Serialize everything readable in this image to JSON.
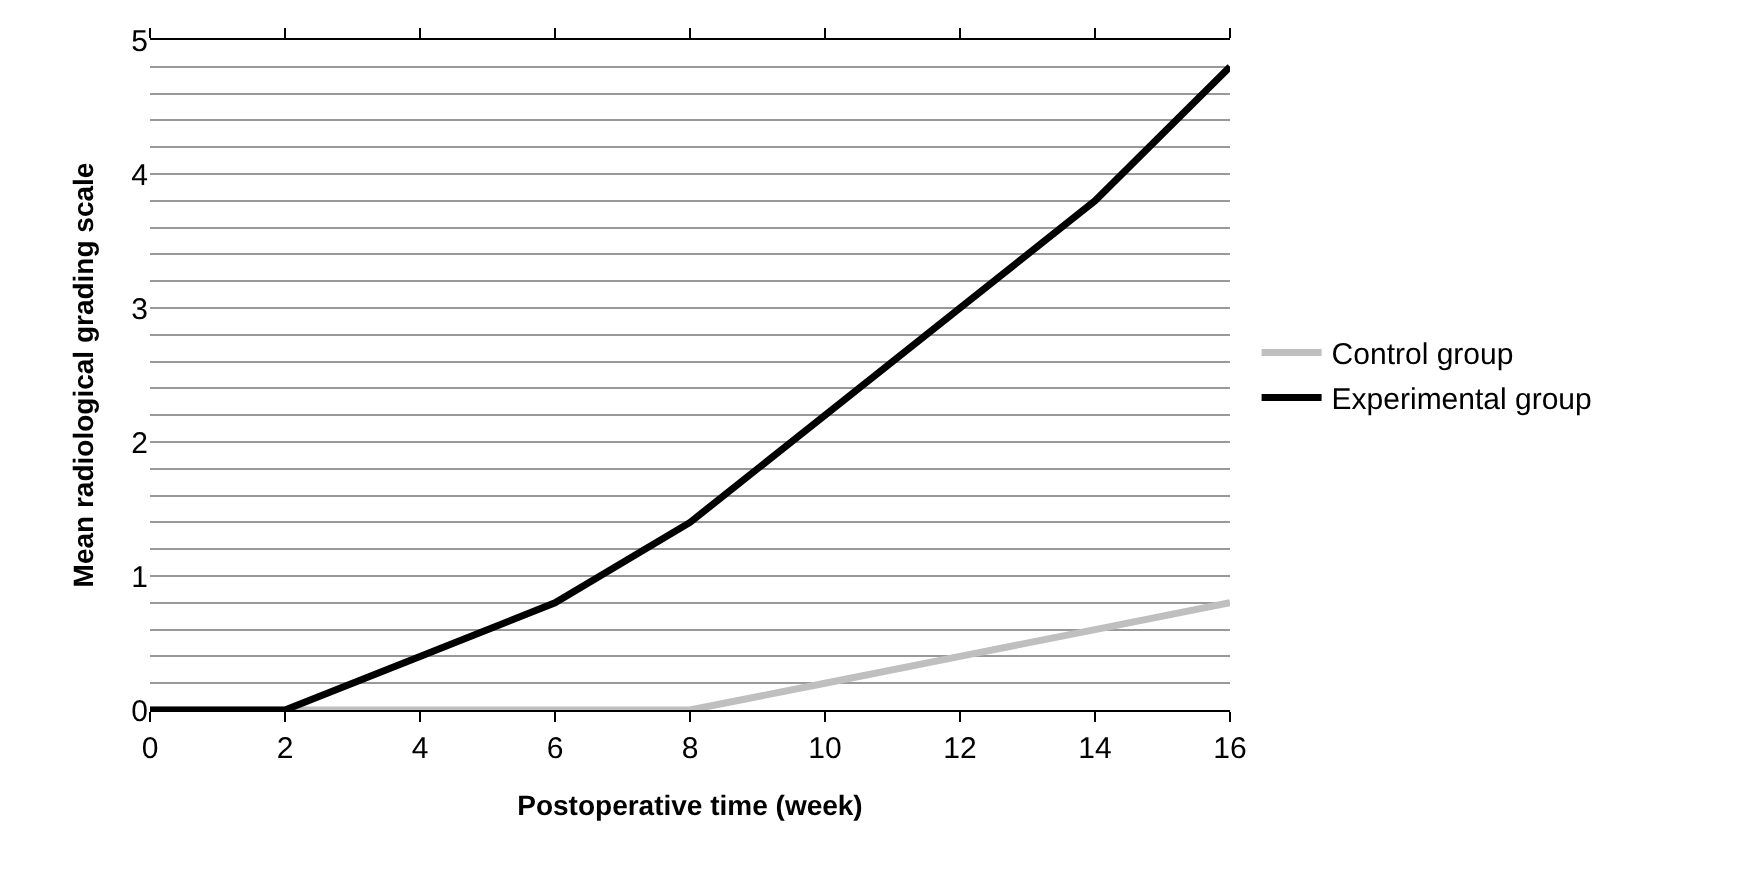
{
  "chart_data": {
    "type": "line",
    "xlabel": "Postoperative time (week)",
    "ylabel": "Mean radiological grading scale",
    "x": [
      0,
      2,
      4,
      6,
      8,
      10,
      12,
      14,
      16
    ],
    "series": [
      {
        "name": "Control group",
        "color": "#bfbfbf",
        "values": [
          0,
          0,
          0,
          0,
          0,
          0.2,
          0.4,
          0.6,
          0.8
        ]
      },
      {
        "name": "Experimental group",
        "color": "#000000",
        "values": [
          0,
          0,
          0.4,
          0.8,
          1.4,
          2.2,
          3.0,
          3.8,
          4.8
        ]
      }
    ],
    "xlim": [
      0,
      16
    ],
    "xticks": [
      0,
      2,
      4,
      6,
      8,
      10,
      12,
      14,
      16
    ],
    "ylim": [
      0,
      5
    ],
    "yticks": [
      0,
      {
        "value": 0.2,
        "label": null
      },
      {
        "value": 0.4,
        "label": null
      },
      {
        "value": 0.6,
        "label": null
      },
      {
        "value": 0.8,
        "label": null
      },
      1,
      {
        "value": 1.2,
        "label": null
      },
      {
        "value": 1.4,
        "label": null
      },
      {
        "value": 1.6,
        "label": null
      },
      {
        "value": 1.8,
        "label": null
      },
      2,
      {
        "value": 2.2,
        "label": null
      },
      {
        "value": 2.4,
        "label": null
      },
      {
        "value": 2.6,
        "label": null
      },
      {
        "value": 2.8,
        "label": null
      },
      3,
      {
        "value": 3.2,
        "label": null
      },
      {
        "value": 3.4,
        "label": null
      },
      {
        "value": 3.6,
        "label": null
      },
      {
        "value": 3.8,
        "label": null
      },
      4,
      {
        "value": 4.2,
        "label": null
      },
      {
        "value": 4.4,
        "label": null
      },
      {
        "value": 4.6,
        "label": null
      },
      {
        "value": 4.8,
        "label": null
      },
      5
    ],
    "grid": "y",
    "legend": "right",
    "marker": "none",
    "line_style": "solid"
  }
}
